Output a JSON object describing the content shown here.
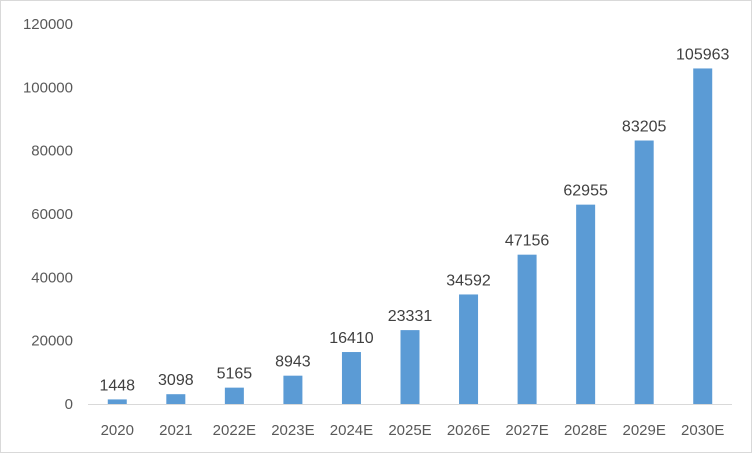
{
  "chart_data": {
    "type": "bar",
    "categories": [
      "2020",
      "2021",
      "2022E",
      "2023E",
      "2024E",
      "2025E",
      "2026E",
      "2027E",
      "2028E",
      "2029E",
      "2030E"
    ],
    "values": [
      1448,
      3098,
      5165,
      8943,
      16410,
      23331,
      34592,
      47156,
      62955,
      83205,
      105963
    ],
    "data_labels": [
      "1448",
      "3098",
      "5165",
      "8943",
      "16410",
      "23331",
      "34592",
      "47156",
      "62955",
      "83205",
      "105963"
    ],
    "ylim": [
      0,
      120000
    ],
    "y_ticks": [
      "0",
      "20000",
      "40000",
      "60000",
      "80000",
      "100000",
      "120000"
    ],
    "grid": false,
    "legend": "none",
    "bar_color": "#5b9bd5"
  }
}
